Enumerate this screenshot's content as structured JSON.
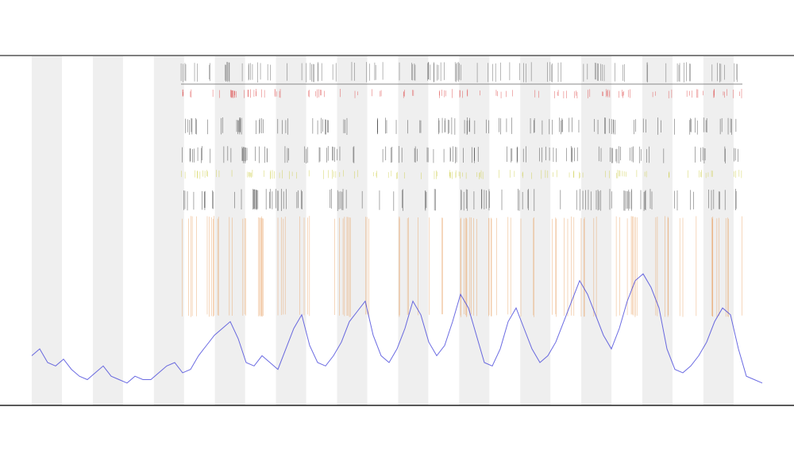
{
  "chart_data": {
    "type": "line",
    "color": "#3a3ad8",
    "x": [
      40,
      50,
      60,
      70,
      80,
      90,
      100,
      110,
      120,
      130,
      140,
      150,
      160,
      170,
      180,
      190,
      200,
      210,
      220,
      230,
      240,
      250,
      260,
      270,
      280,
      290,
      300,
      310,
      320,
      330,
      340,
      350,
      360,
      370,
      380,
      390,
      400,
      410,
      420,
      430,
      440,
      450,
      460,
      470,
      480,
      490,
      500,
      510,
      520,
      530,
      540,
      550,
      560,
      570,
      580,
      590,
      600,
      610,
      620,
      630,
      640,
      650,
      660,
      670,
      680,
      690,
      700,
      710,
      720,
      730,
      740,
      750,
      760,
      770,
      780,
      790,
      800,
      810,
      820,
      830,
      840,
      850,
      860,
      870,
      880,
      890,
      900,
      910,
      920,
      930,
      940,
      950,
      960
    ],
    "values": [
      12,
      14,
      10,
      9,
      11,
      8,
      6,
      5,
      7,
      9,
      6,
      5,
      4,
      6,
      5,
      5,
      7,
      9,
      10,
      7,
      8,
      12,
      15,
      18,
      20,
      22,
      17,
      10,
      9,
      12,
      10,
      8,
      14,
      20,
      24,
      15,
      10,
      9,
      12,
      16,
      22,
      25,
      28,
      18,
      12,
      10,
      14,
      20,
      28,
      24,
      16,
      12,
      15,
      22,
      30,
      26,
      18,
      10,
      9,
      14,
      22,
      26,
      20,
      14,
      10,
      12,
      16,
      22,
      28,
      34,
      30,
      24,
      18,
      14,
      20,
      28,
      34,
      36,
      32,
      26,
      14,
      8,
      7,
      9,
      12,
      16,
      22,
      26,
      24,
      14,
      6,
      5,
      4
    ],
    "xlim": [
      35,
      965
    ],
    "ylim": [
      0,
      100
    ]
  }
}
